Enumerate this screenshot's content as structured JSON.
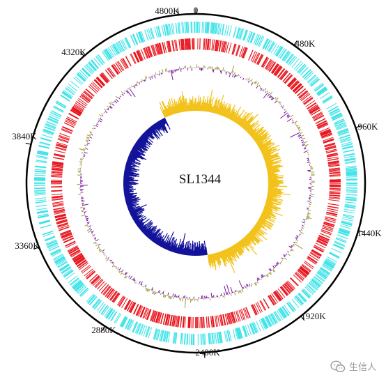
{
  "plot": {
    "center_label": "SL1344",
    "tick_labels": [
      "0",
      "480K",
      "960K",
      "1440K",
      "1920K",
      "2400K",
      "2880K",
      "3360K",
      "3840K",
      "4320K",
      "4800K"
    ],
    "genome_length_k": 4880
  },
  "colors": {
    "outline": "#000000",
    "cds_forward": "#3fe3e8",
    "cds_reverse": "#e8141c",
    "gc_content_positive": "#9a9a3a",
    "gc_content_negative": "#7a1a9a",
    "gc_skew_positive": "#f2c21a",
    "gc_skew_negative": "#12129a"
  },
  "watermark": {
    "icon": "wechat-icon",
    "text": "生信人"
  }
}
